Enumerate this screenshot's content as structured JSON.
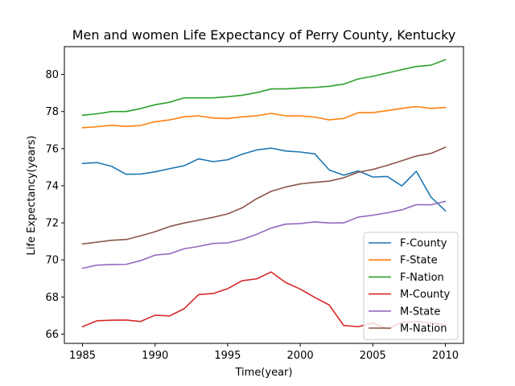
{
  "chart_data": {
    "type": "line",
    "title": "Men and women Life Expectancy of Perry County, Kentucky",
    "xlabel": "Time(year)",
    "ylabel": "Life Expectancy(years)",
    "xlim": [
      1983.75,
      2011.25
    ],
    "ylim": [
      65.5,
      81.5
    ],
    "xticks": [
      1985,
      1990,
      1995,
      2000,
      2005,
      2010
    ],
    "yticks": [
      66,
      68,
      70,
      72,
      74,
      76,
      78,
      80
    ],
    "grid": false,
    "legend_position": "lower-right",
    "x": [
      1985,
      1986,
      1987,
      1988,
      1989,
      1990,
      1991,
      1992,
      1993,
      1994,
      1995,
      1996,
      1997,
      1998,
      1999,
      2000,
      2001,
      2002,
      2003,
      2004,
      2005,
      2006,
      2007,
      2008,
      2009,
      2010
    ],
    "series": [
      {
        "name": "F-County",
        "color": "#1f77b4",
        "values": [
          75.2,
          75.25,
          75.05,
          74.62,
          74.63,
          74.75,
          74.92,
          75.08,
          75.45,
          75.3,
          75.4,
          75.7,
          75.93,
          76.03,
          75.87,
          75.82,
          75.72,
          74.85,
          74.57,
          74.8,
          74.47,
          74.5,
          73.99,
          74.78,
          73.4,
          72.65
        ]
      },
      {
        "name": "F-State",
        "color": "#ff7f0e",
        "values": [
          77.13,
          77.18,
          77.26,
          77.2,
          77.25,
          77.45,
          77.55,
          77.72,
          77.77,
          77.65,
          77.62,
          77.72,
          77.77,
          77.9,
          77.77,
          77.77,
          77.7,
          77.55,
          77.63,
          77.94,
          77.94,
          78.05,
          78.17,
          78.27,
          78.17,
          78.22
        ]
      },
      {
        "name": "F-Nation",
        "color": "#2ca02c",
        "values": [
          77.8,
          77.88,
          78.0,
          78.0,
          78.16,
          78.37,
          78.5,
          78.74,
          78.74,
          78.74,
          78.8,
          78.88,
          79.02,
          79.22,
          79.22,
          79.27,
          79.3,
          79.36,
          79.48,
          79.76,
          79.9,
          80.08,
          80.26,
          80.43,
          80.5,
          80.8
        ]
      },
      {
        "name": "M-County",
        "color": "#d62728",
        "values": [
          66.4,
          66.72,
          66.75,
          66.76,
          66.68,
          67.02,
          66.98,
          67.37,
          68.13,
          68.19,
          68.45,
          68.88,
          68.98,
          69.35,
          68.78,
          68.43,
          67.98,
          67.57,
          66.46,
          66.4,
          66.6,
          66.27,
          66.63,
          66.68,
          66.6,
          66.5
        ]
      },
      {
        "name": "M-State",
        "color": "#9467bd",
        "values": [
          69.55,
          69.72,
          69.75,
          69.76,
          69.96,
          70.26,
          70.33,
          70.6,
          70.73,
          70.89,
          70.92,
          71.1,
          71.38,
          71.72,
          71.93,
          71.96,
          72.05,
          71.99,
          72.0,
          72.31,
          72.41,
          72.54,
          72.7,
          72.98,
          72.97,
          73.16
        ]
      },
      {
        "name": "M-Nation",
        "color": "#8c564b",
        "values": [
          70.86,
          70.96,
          71.06,
          71.1,
          71.3,
          71.52,
          71.8,
          71.99,
          72.14,
          72.3,
          72.48,
          72.81,
          73.3,
          73.7,
          73.93,
          74.1,
          74.18,
          74.25,
          74.43,
          74.73,
          74.88,
          75.1,
          75.35,
          75.6,
          75.74,
          76.07
        ]
      }
    ]
  }
}
